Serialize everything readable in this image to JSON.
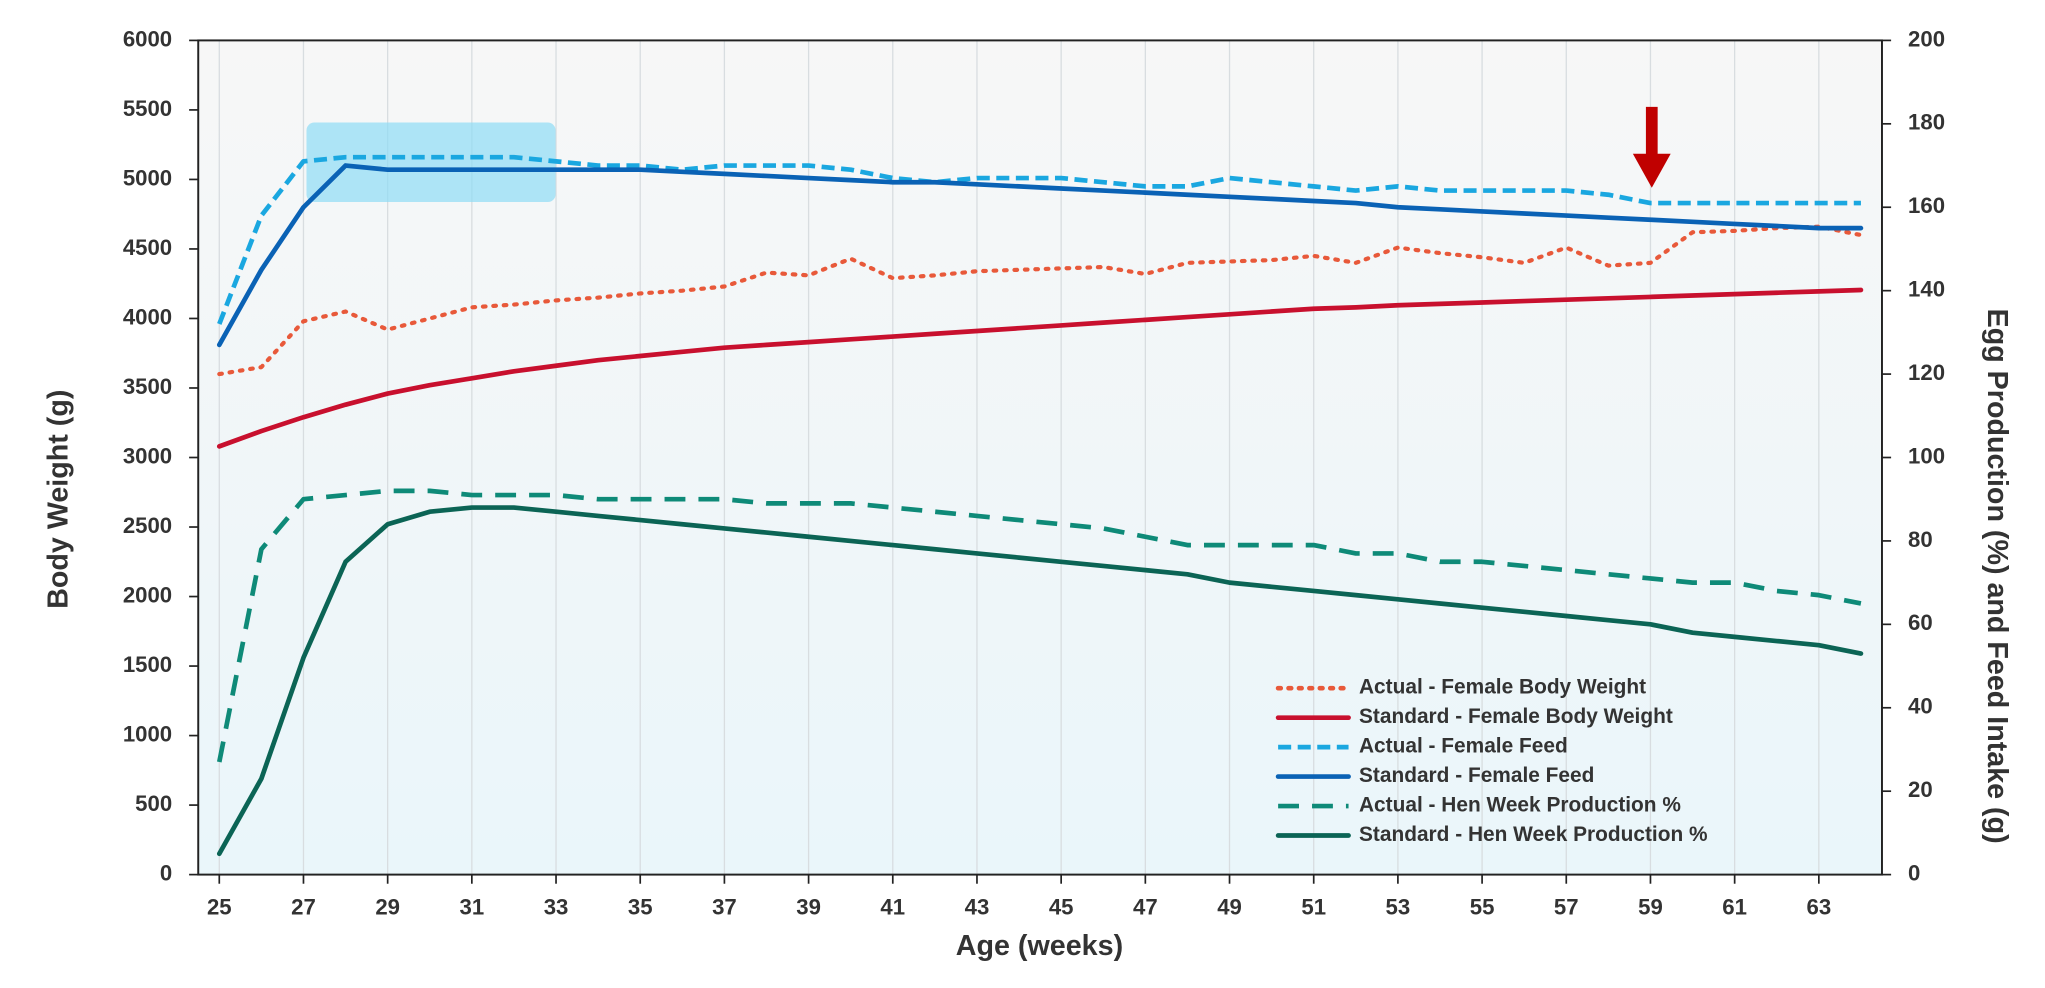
{
  "chart_data": {
    "type": "line",
    "xlabel": "Age (weeks)",
    "ylabel": "Body Weight (g)",
    "y2label": "Egg Production (%) and Feed Intake (g)",
    "x": [
      25,
      26,
      27,
      28,
      29,
      30,
      31,
      32,
      33,
      34,
      35,
      36,
      37,
      38,
      39,
      40,
      41,
      42,
      43,
      44,
      45,
      46,
      47,
      48,
      49,
      50,
      51,
      52,
      53,
      54,
      55,
      56,
      57,
      58,
      59,
      60,
      61,
      62,
      63,
      64
    ],
    "xlim": [
      24.5,
      64.5
    ],
    "xticks": [
      25,
      27,
      29,
      31,
      33,
      35,
      37,
      39,
      41,
      43,
      45,
      47,
      49,
      51,
      53,
      55,
      57,
      59,
      61,
      63
    ],
    "ylim": [
      0,
      6000
    ],
    "yticks": [
      0,
      500,
      1000,
      1500,
      2000,
      2500,
      3000,
      3500,
      4000,
      4500,
      5000,
      5500,
      6000
    ],
    "y2lim": [
      0,
      200
    ],
    "y2ticks": [
      0,
      20,
      40,
      60,
      80,
      100,
      120,
      140,
      160,
      180,
      200
    ],
    "grid": true,
    "legend": "lower right",
    "series": [
      {
        "name": "Actual - Female Body Weight",
        "color": "#e8593a",
        "dash": "dotted",
        "axis": "y",
        "values": [
          3600,
          3650,
          3980,
          4050,
          3920,
          4000,
          4080,
          4100,
          4130,
          4150,
          4180,
          4200,
          4230,
          4330,
          4310,
          4430,
          4290,
          4310,
          4340,
          4350,
          4360,
          4370,
          4320,
          4400,
          4410,
          4420,
          4450,
          4400,
          4510,
          4470,
          4440,
          4400,
          4510,
          4380,
          4400,
          4620,
          4630,
          4650,
          4660,
          4600
        ]
      },
      {
        "name": "Standard - Female Body Weight",
        "color": "#c8102e",
        "dash": "solid",
        "axis": "y",
        "values": [
          3080,
          3190,
          3290,
          3380,
          3460,
          3520,
          3570,
          3620,
          3660,
          3700,
          3730,
          3760,
          3790,
          3810,
          3830,
          3850,
          3870,
          3890,
          3910,
          3930,
          3950,
          3970,
          3990,
          4010,
          4030,
          4050,
          4070,
          4080,
          4095,
          4105,
          4115,
          4125,
          4135,
          4145,
          4155,
          4165,
          4175,
          4185,
          4195,
          4205
        ]
      },
      {
        "name": "Actual - Female Feed",
        "color": "#1aa7e0",
        "dash": "dashed",
        "axis": "y2",
        "values": [
          132,
          158,
          171,
          172,
          172,
          172,
          172,
          172,
          171,
          170,
          170,
          169,
          170,
          170,
          170,
          169,
          167,
          166,
          167,
          167,
          167,
          166,
          165,
          165,
          167,
          166,
          165,
          164,
          165,
          164,
          164,
          164,
          164,
          163,
          161,
          161,
          161,
          161,
          161,
          161
        ]
      },
      {
        "name": "Standard - Female Feed",
        "color": "#0a62b5",
        "dash": "solid",
        "axis": "y2",
        "values": [
          127,
          145,
          160,
          170,
          169,
          169,
          169,
          169,
          169,
          169,
          169,
          168.5,
          168,
          167.5,
          167,
          166.5,
          166,
          166,
          165.5,
          165,
          164.5,
          164,
          163.5,
          163,
          162.5,
          162,
          161.5,
          161,
          160,
          159.5,
          159,
          158.5,
          158,
          157.5,
          157,
          156.5,
          156,
          155.5,
          155,
          155
        ]
      },
      {
        "name": "Actual - Hen Week Production %",
        "color": "#0e8a78",
        "dash": "longdash",
        "axis": "y2",
        "values": [
          27,
          78,
          90,
          91,
          92,
          92,
          91,
          91,
          91,
          90,
          90,
          90,
          90,
          89,
          89,
          89,
          88,
          87,
          86,
          85,
          84,
          83,
          81,
          79,
          79,
          79,
          79,
          77,
          77,
          75,
          75,
          74,
          73,
          72,
          71,
          70,
          70,
          68,
          67,
          65
        ]
      },
      {
        "name": "Standard - Hen Week Production %",
        "color": "#0b6455",
        "dash": "solid",
        "axis": "y2",
        "values": [
          5,
          23,
          52,
          75,
          84,
          87,
          88,
          88,
          87,
          86,
          85,
          84,
          83,
          82,
          81,
          80,
          79,
          78,
          77,
          76,
          75,
          74,
          73,
          72,
          70,
          69,
          68,
          67,
          66,
          65,
          64,
          63,
          62,
          61,
          60,
          58,
          57,
          56,
          55,
          53
        ]
      }
    ]
  }
}
